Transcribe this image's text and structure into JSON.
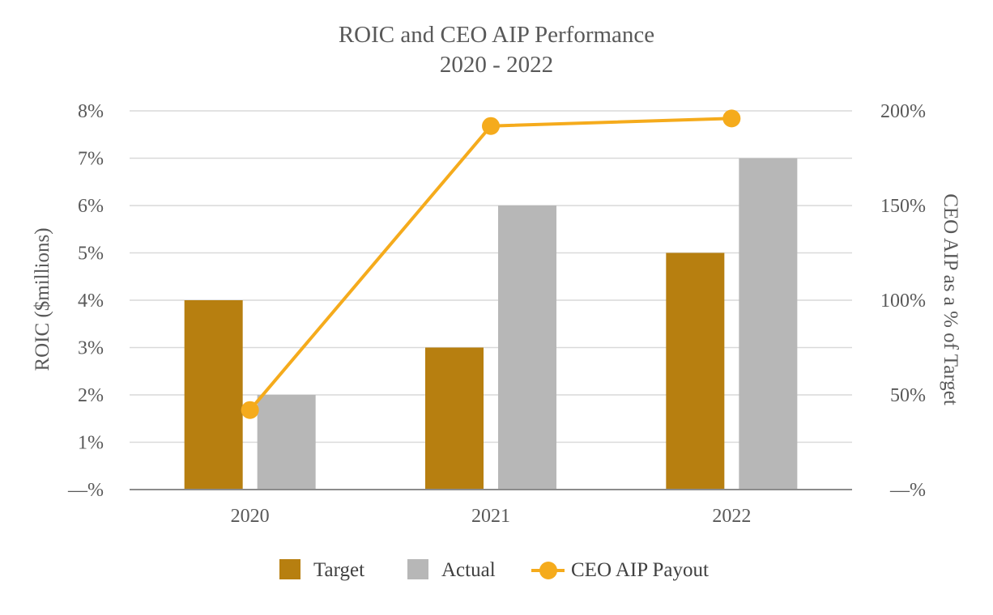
{
  "chart_data": {
    "type": "bar",
    "title": "ROIC and CEO AIP Performance",
    "subtitle": "2020 - 2022",
    "categories": [
      "2020",
      "2021",
      "2022"
    ],
    "series": [
      {
        "name": "Target",
        "kind": "bar",
        "axis": "left",
        "color": "#b77f10",
        "values": [
          4,
          3,
          5
        ]
      },
      {
        "name": "Actual",
        "kind": "bar",
        "axis": "left",
        "color": "#b7b7b7",
        "values": [
          2,
          6,
          7
        ]
      },
      {
        "name": "CEO AIP Payout",
        "kind": "line",
        "axis": "right",
        "color": "#f5ab1c",
        "values": [
          42,
          192,
          196
        ]
      }
    ],
    "ylabel": "ROIC ($millions)",
    "ylabel_right": "CEO AIP as a % of Target",
    "ylim": [
      0,
      8
    ],
    "ylim_right": [
      0,
      200
    ],
    "yticks": [
      "—%",
      "1%",
      "2%",
      "3%",
      "4%",
      "5%",
      "6%",
      "7%",
      "8%"
    ],
    "yticks_right": [
      "—%",
      "50%",
      "100%",
      "150%",
      "200%"
    ],
    "grid": true,
    "legend_position": "bottom"
  }
}
